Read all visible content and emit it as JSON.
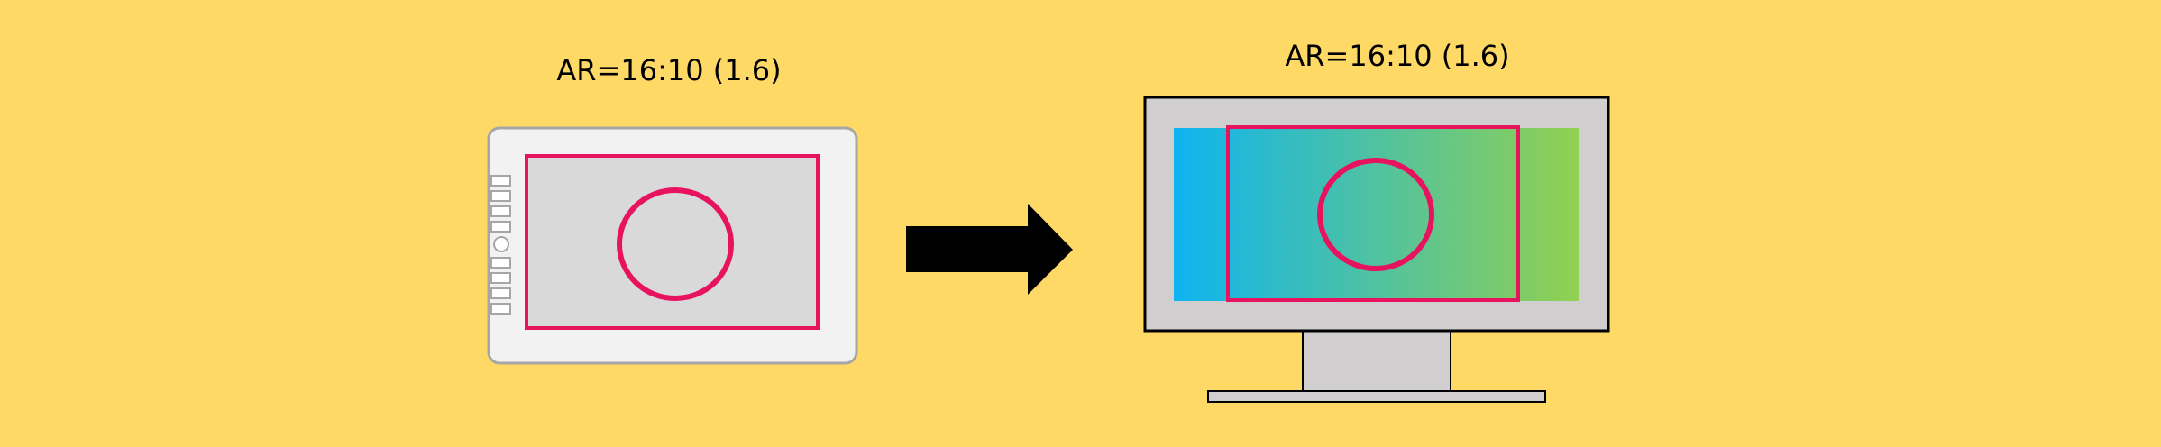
{
  "tablet": {
    "label": "AR=16:10 (1.6)",
    "body_color": "#F2F2F2",
    "screen_color": "#D9D9D9",
    "outline_color": "#A6A6A6",
    "highlight_color": "#E8135E"
  },
  "monitor": {
    "label": "AR=16:10 (1.6)",
    "frame_color": "#D0CECE",
    "gradient_start": "#0EB4F0",
    "gradient_end": "#92D050",
    "highlight_color": "#E8135E"
  },
  "arrow": {
    "color": "#000000"
  }
}
